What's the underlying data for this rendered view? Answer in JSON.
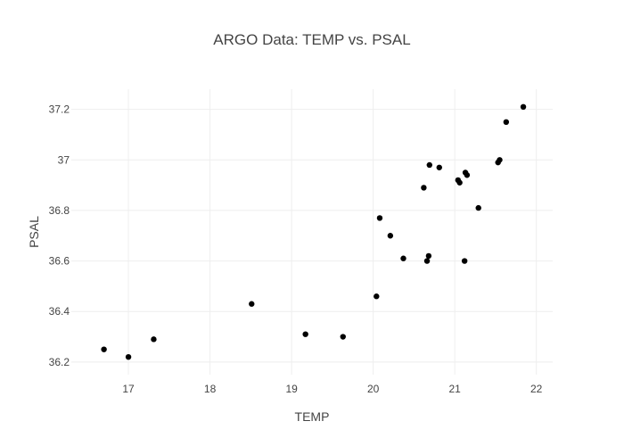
{
  "chart_data": {
    "type": "scatter",
    "title": "ARGO Data: TEMP vs. PSAL",
    "xlabel": "TEMP",
    "ylabel": "PSAL",
    "xlim": [
      16.3,
      22.2
    ],
    "ylim": [
      36.15,
      37.28
    ],
    "xticks": [
      17,
      18,
      19,
      20,
      21,
      22
    ],
    "yticks": [
      36.2,
      36.4,
      36.6,
      36.8,
      37,
      37.2
    ],
    "xtick_labels": [
      "17",
      "18",
      "19",
      "20",
      "21",
      "22"
    ],
    "ytick_labels": [
      "36.2",
      "36.4",
      "36.6",
      "36.8",
      "37",
      "37.2"
    ],
    "grid": true,
    "marker_color": "#000000",
    "points": [
      {
        "x": 16.7,
        "y": 36.25
      },
      {
        "x": 17.0,
        "y": 36.22
      },
      {
        "x": 17.31,
        "y": 36.29
      },
      {
        "x": 18.51,
        "y": 36.43
      },
      {
        "x": 19.17,
        "y": 36.31
      },
      {
        "x": 19.63,
        "y": 36.3
      },
      {
        "x": 20.04,
        "y": 36.46
      },
      {
        "x": 20.08,
        "y": 36.77
      },
      {
        "x": 20.21,
        "y": 36.7
      },
      {
        "x": 20.37,
        "y": 36.61
      },
      {
        "x": 20.62,
        "y": 36.89
      },
      {
        "x": 20.66,
        "y": 36.6
      },
      {
        "x": 20.68,
        "y": 36.62
      },
      {
        "x": 20.69,
        "y": 36.98
      },
      {
        "x": 20.81,
        "y": 36.97
      },
      {
        "x": 21.04,
        "y": 36.92
      },
      {
        "x": 21.06,
        "y": 36.91
      },
      {
        "x": 21.12,
        "y": 36.6
      },
      {
        "x": 21.13,
        "y": 36.95
      },
      {
        "x": 21.15,
        "y": 36.94
      },
      {
        "x": 21.29,
        "y": 36.81
      },
      {
        "x": 21.53,
        "y": 36.99
      },
      {
        "x": 21.55,
        "y": 37.0
      },
      {
        "x": 21.63,
        "y": 37.15
      },
      {
        "x": 21.84,
        "y": 37.21
      }
    ]
  }
}
